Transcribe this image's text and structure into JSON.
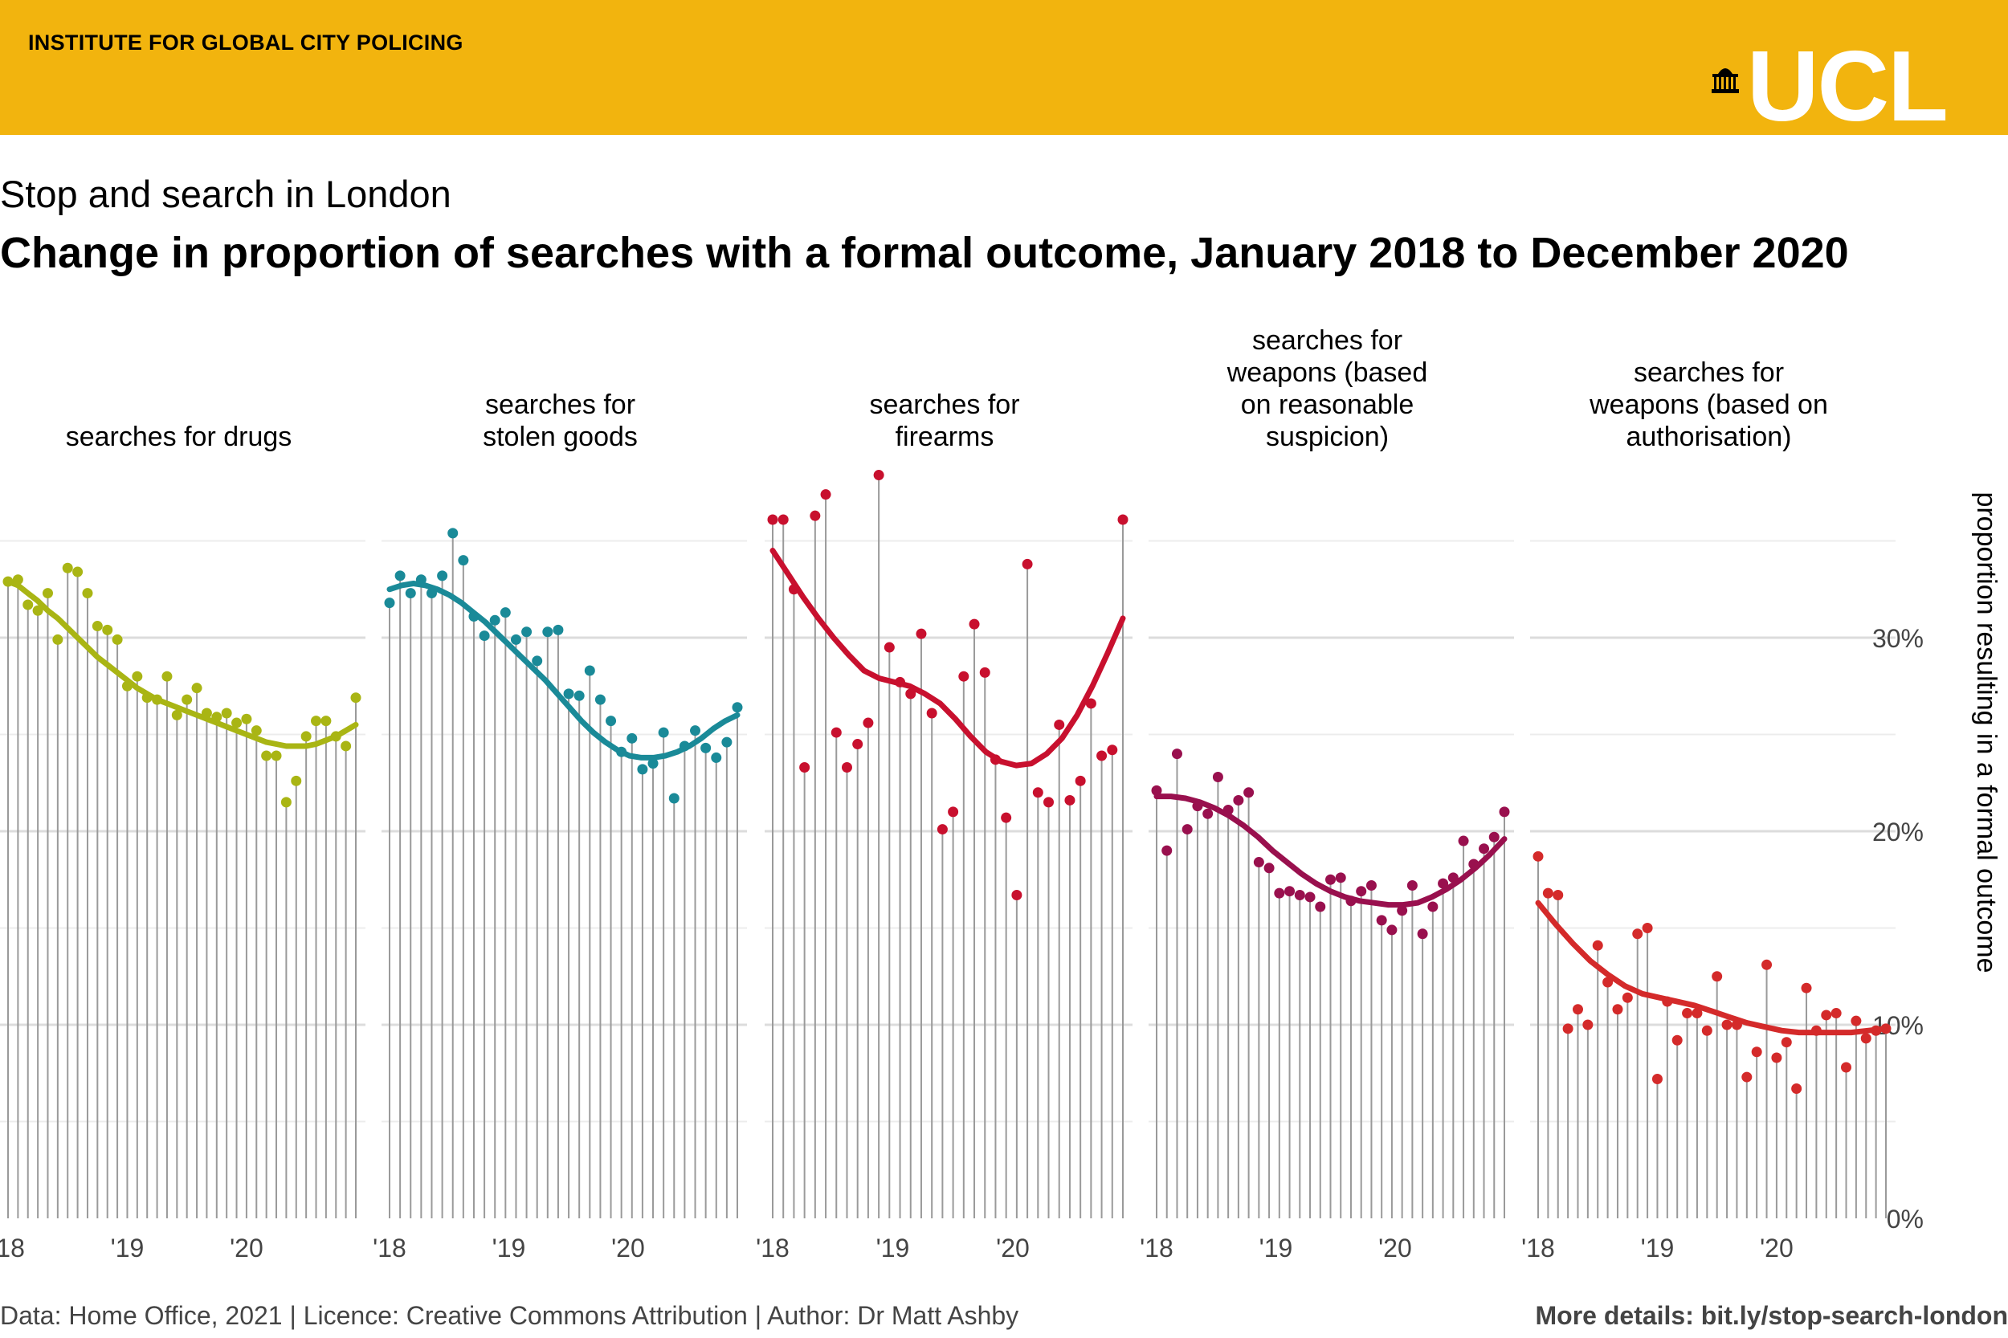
{
  "header": {
    "institute": "INSTITUTE FOR GLOBAL CITY POLICING",
    "logo_text": "UCL",
    "logo_icon": "portico-icon"
  },
  "subtitle": "Stop and search in London",
  "title": "Change in proportion of searches with a formal outcome, January 2018 to December 2020",
  "footer": {
    "left": "Data: Home Office, 2021 | Licence: Creative Commons Attribution | Author: Dr Matt Ashby",
    "right": "More details: bit.ly/stop-search-london"
  },
  "colors": {
    "banner": "#F2B40E",
    "drugs": "#A9B514",
    "stolen": "#1A8A98",
    "firearms": "#C8102E",
    "weapons_rs": "#99104E",
    "weapons_auth": "#D42A2A"
  },
  "chart_data": {
    "type": "scatter",
    "ylabel": "proportion resulting in a formal outcome",
    "ylim": [
      0,
      40
    ],
    "yticks": [
      0,
      10,
      20,
      30
    ],
    "ytick_labels": [
      "0%",
      "10%",
      "20%",
      "30%"
    ],
    "xtick_labels": [
      "'18",
      "'19",
      "'20"
    ],
    "x_start": "2018-01",
    "x_end": "2020-12",
    "grid": true,
    "panels": [
      {
        "title_lines": [
          "searches for drugs"
        ],
        "color_key": "drugs",
        "values": [
          32.9,
          33.0,
          31.7,
          31.4,
          32.3,
          29.9,
          33.6,
          33.4,
          32.3,
          30.6,
          30.4,
          29.9,
          27.5,
          28.0,
          26.9,
          26.8,
          28.0,
          26.0,
          26.8,
          27.4,
          26.1,
          25.9,
          26.1,
          25.6,
          25.8,
          25.2,
          23.9,
          23.9,
          21.5,
          22.6,
          24.9,
          25.7,
          25.7,
          24.9,
          24.4,
          26.9
        ],
        "trend": [
          32.9,
          32.7,
          32.3,
          31.9,
          31.4,
          31.0,
          30.5,
          30.0,
          29.5,
          29.0,
          28.6,
          28.2,
          27.8,
          27.4,
          27.1,
          26.8,
          26.6,
          26.4,
          26.2,
          26.0,
          25.8,
          25.6,
          25.4,
          25.2,
          25.0,
          24.8,
          24.6,
          24.5,
          24.4,
          24.4,
          24.4,
          24.5,
          24.7,
          24.9,
          25.2,
          25.5
        ]
      },
      {
        "title_lines": [
          "searches for",
          "stolen goods"
        ],
        "color_key": "stolen",
        "values": [
          31.8,
          33.2,
          32.3,
          33.0,
          32.3,
          33.2,
          35.4,
          34.0,
          31.1,
          30.1,
          30.9,
          31.3,
          29.9,
          30.3,
          28.8,
          30.3,
          30.4,
          27.1,
          27.0,
          28.3,
          26.8,
          25.7,
          24.1,
          24.8,
          23.2,
          23.5,
          25.1,
          21.7,
          24.4,
          25.2,
          24.3,
          23.8,
          24.6,
          26.4
        ],
        "trend": [
          32.5,
          32.7,
          32.8,
          32.7,
          32.5,
          32.2,
          31.8,
          31.3,
          30.8,
          30.2,
          29.6,
          29.0,
          28.4,
          27.8,
          27.1,
          26.4,
          25.7,
          25.1,
          24.6,
          24.2,
          23.9,
          23.8,
          23.8,
          23.9,
          24.1,
          24.4,
          24.8,
          25.3,
          25.7,
          26.0
        ],
        "values_count_note": ""
      },
      {
        "title_lines": [
          "searches for",
          "firearms"
        ],
        "color_key": "firearms",
        "values": [
          36.1,
          36.1,
          32.5,
          23.3,
          36.3,
          37.4,
          25.1,
          23.3,
          24.5,
          25.6,
          38.4,
          29.5,
          27.7,
          27.1,
          30.2,
          26.1,
          20.1,
          21.0,
          28.0,
          30.7,
          28.2,
          23.7,
          20.7,
          16.7,
          33.8,
          22.0,
          21.5,
          25.5,
          21.6,
          22.6,
          26.6,
          23.9,
          24.2,
          36.1
        ],
        "trend": [
          34.5,
          33.3,
          32.1,
          31.0,
          30.0,
          29.1,
          28.3,
          27.9,
          27.7,
          27.5,
          27.1,
          26.6,
          25.8,
          24.9,
          24.1,
          23.6,
          23.4,
          23.5,
          24.0,
          24.8,
          26.0,
          27.5,
          29.2,
          31.0
        ],
        "values_count_note": ""
      },
      {
        "title_lines": [
          "searches for",
          "weapons (based",
          "on reasonable",
          "suspicion)"
        ],
        "color_key": "weapons_rs",
        "values": [
          22.1,
          19.0,
          24.0,
          20.1,
          21.3,
          20.9,
          22.8,
          21.1,
          21.6,
          22.0,
          18.4,
          18.1,
          16.8,
          16.9,
          16.7,
          16.6,
          16.1,
          17.5,
          17.6,
          16.4,
          16.9,
          17.2,
          15.4,
          14.9,
          15.9,
          17.2,
          14.7,
          16.1,
          17.3,
          17.6,
          19.5,
          18.3,
          19.1,
          19.7,
          21.0
        ],
        "trend": [
          21.8,
          21.8,
          21.7,
          21.5,
          21.2,
          20.8,
          20.3,
          19.7,
          19.0,
          18.4,
          17.8,
          17.3,
          16.9,
          16.6,
          16.4,
          16.3,
          16.2,
          16.2,
          16.3,
          16.6,
          17.0,
          17.5,
          18.1,
          18.8,
          19.6
        ],
        "values_count_note": ""
      },
      {
        "title_lines": [
          "searches for",
          "weapons (based on",
          "authorisation)"
        ],
        "color_key": "weapons_auth",
        "values": [
          18.7,
          16.8,
          16.7,
          9.8,
          10.8,
          10.0,
          14.1,
          12.2,
          10.8,
          11.4,
          14.7,
          15.0,
          7.2,
          11.2,
          9.2,
          10.6,
          10.6,
          9.7,
          12.5,
          10.0,
          10.0,
          7.3,
          8.6,
          13.1,
          8.3,
          9.1,
          6.7,
          11.9,
          9.7,
          10.5,
          10.6,
          7.8,
          10.2,
          9.3,
          9.7,
          9.8
        ],
        "trend": [
          16.3,
          15.2,
          14.2,
          13.3,
          12.6,
          12.0,
          11.6,
          11.4,
          11.2,
          11.0,
          10.7,
          10.4,
          10.1,
          9.9,
          9.7,
          9.6,
          9.6,
          9.6,
          9.6,
          9.7,
          9.8
        ],
        "values_count_note": ""
      }
    ]
  }
}
